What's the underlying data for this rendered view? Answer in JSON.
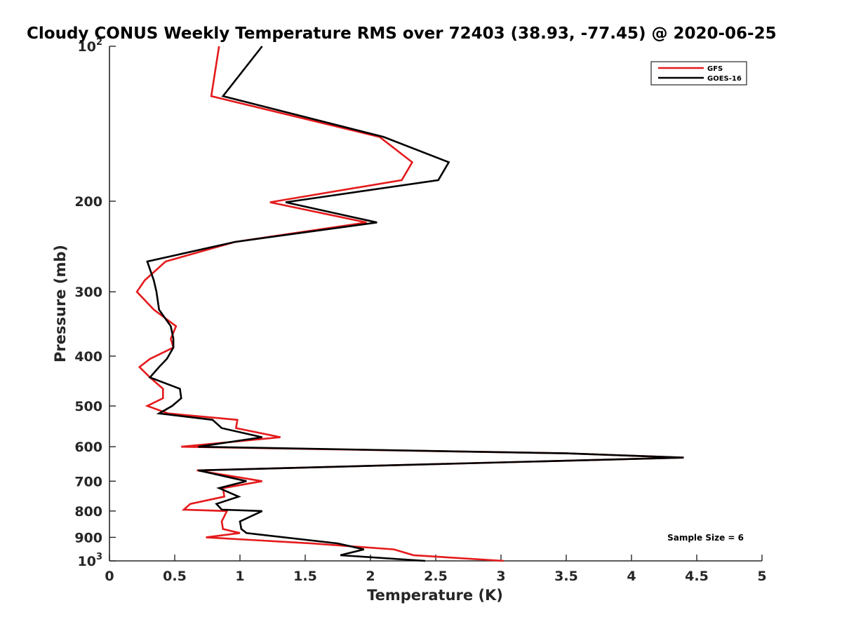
{
  "chart_data": {
    "type": "line",
    "title": "Cloudy CONUS Weekly Temperature RMS over 72403 (38.93, -77.45) @ 2020-06-25",
    "xlabel": "Temperature (K)",
    "ylabel": "Pressure (mb)",
    "xlim": [
      0,
      5
    ],
    "ylim": [
      100,
      1000
    ],
    "y_scale": "log",
    "y_reversed": true,
    "grid": false,
    "legend_position": "top-right",
    "x_ticks": [
      "0",
      "0.5",
      "1",
      "1.5",
      "2",
      "2.5",
      "3",
      "3.5",
      "4",
      "4.5",
      "5"
    ],
    "y_ticks": [
      {
        "value": 100,
        "label": "10",
        "sup": "2"
      },
      {
        "value": 200,
        "label": "200",
        "sup": ""
      },
      {
        "value": 300,
        "label": "300",
        "sup": ""
      },
      {
        "value": 400,
        "label": "400",
        "sup": ""
      },
      {
        "value": 500,
        "label": "500",
        "sup": ""
      },
      {
        "value": 600,
        "label": "600",
        "sup": ""
      },
      {
        "value": 700,
        "label": "700",
        "sup": ""
      },
      {
        "value": 800,
        "label": "800",
        "sup": ""
      },
      {
        "value": 900,
        "label": "900",
        "sup": ""
      },
      {
        "value": 1000,
        "label": "10",
        "sup": "3"
      }
    ],
    "series": [
      {
        "name": "GFS",
        "color": "#e41a1c",
        "points": [
          [
            0.84,
            100
          ],
          [
            0.78,
            125
          ],
          [
            2.07,
            150
          ],
          [
            2.32,
            168
          ],
          [
            2.24,
            182
          ],
          [
            1.23,
            201
          ],
          [
            1.97,
            220
          ],
          [
            0.96,
            240
          ],
          [
            0.43,
            262
          ],
          [
            0.27,
            285
          ],
          [
            0.21,
            300
          ],
          [
            0.34,
            325
          ],
          [
            0.51,
            350
          ],
          [
            0.47,
            370
          ],
          [
            0.49,
            385
          ],
          [
            0.31,
            405
          ],
          [
            0.23,
            420
          ],
          [
            0.31,
            440
          ],
          [
            0.41,
            463
          ],
          [
            0.41,
            483
          ],
          [
            0.29,
            500
          ],
          [
            0.45,
            517
          ],
          [
            0.98,
            532
          ],
          [
            0.97,
            552
          ],
          [
            1.31,
            575
          ],
          [
            0.55,
            600
          ],
          [
            3.5,
            618
          ],
          [
            4.4,
            630
          ],
          [
            0.67,
            667
          ],
          [
            1.17,
            700
          ],
          [
            0.87,
            722
          ],
          [
            0.88,
            750
          ],
          [
            0.62,
            775
          ],
          [
            0.57,
            795
          ],
          [
            0.9,
            800
          ],
          [
            0.86,
            838
          ],
          [
            0.87,
            867
          ],
          [
            1.0,
            883
          ],
          [
            0.74,
            900
          ],
          [
            1.55,
            925
          ],
          [
            2.18,
            950
          ],
          [
            2.33,
            975
          ],
          [
            3.02,
            1000
          ]
        ]
      },
      {
        "name": "GOES-16",
        "color": "#000000",
        "points": [
          [
            1.17,
            100
          ],
          [
            0.87,
            125
          ],
          [
            2.1,
            150
          ],
          [
            2.6,
            168
          ],
          [
            2.52,
            182
          ],
          [
            1.35,
            201
          ],
          [
            2.05,
            220
          ],
          [
            0.96,
            240
          ],
          [
            0.29,
            262
          ],
          [
            0.34,
            285
          ],
          [
            0.36,
            300
          ],
          [
            0.38,
            325
          ],
          [
            0.47,
            350
          ],
          [
            0.49,
            370
          ],
          [
            0.49,
            385
          ],
          [
            0.44,
            405
          ],
          [
            0.38,
            420
          ],
          [
            0.31,
            440
          ],
          [
            0.54,
            463
          ],
          [
            0.55,
            483
          ],
          [
            0.48,
            500
          ],
          [
            0.38,
            517
          ],
          [
            0.79,
            532
          ],
          [
            0.86,
            552
          ],
          [
            1.17,
            575
          ],
          [
            0.68,
            600
          ],
          [
            3.5,
            618
          ],
          [
            4.4,
            630
          ],
          [
            0.68,
            667
          ],
          [
            1.05,
            700
          ],
          [
            0.84,
            722
          ],
          [
            0.99,
            750
          ],
          [
            0.82,
            775
          ],
          [
            0.86,
            795
          ],
          [
            1.17,
            800
          ],
          [
            1.0,
            838
          ],
          [
            1.01,
            867
          ],
          [
            1.05,
            883
          ],
          [
            1.75,
            925
          ],
          [
            1.95,
            950
          ],
          [
            1.77,
            975
          ],
          [
            2.42,
            1000
          ]
        ]
      }
    ],
    "annotation": "Sample Size = 6"
  }
}
